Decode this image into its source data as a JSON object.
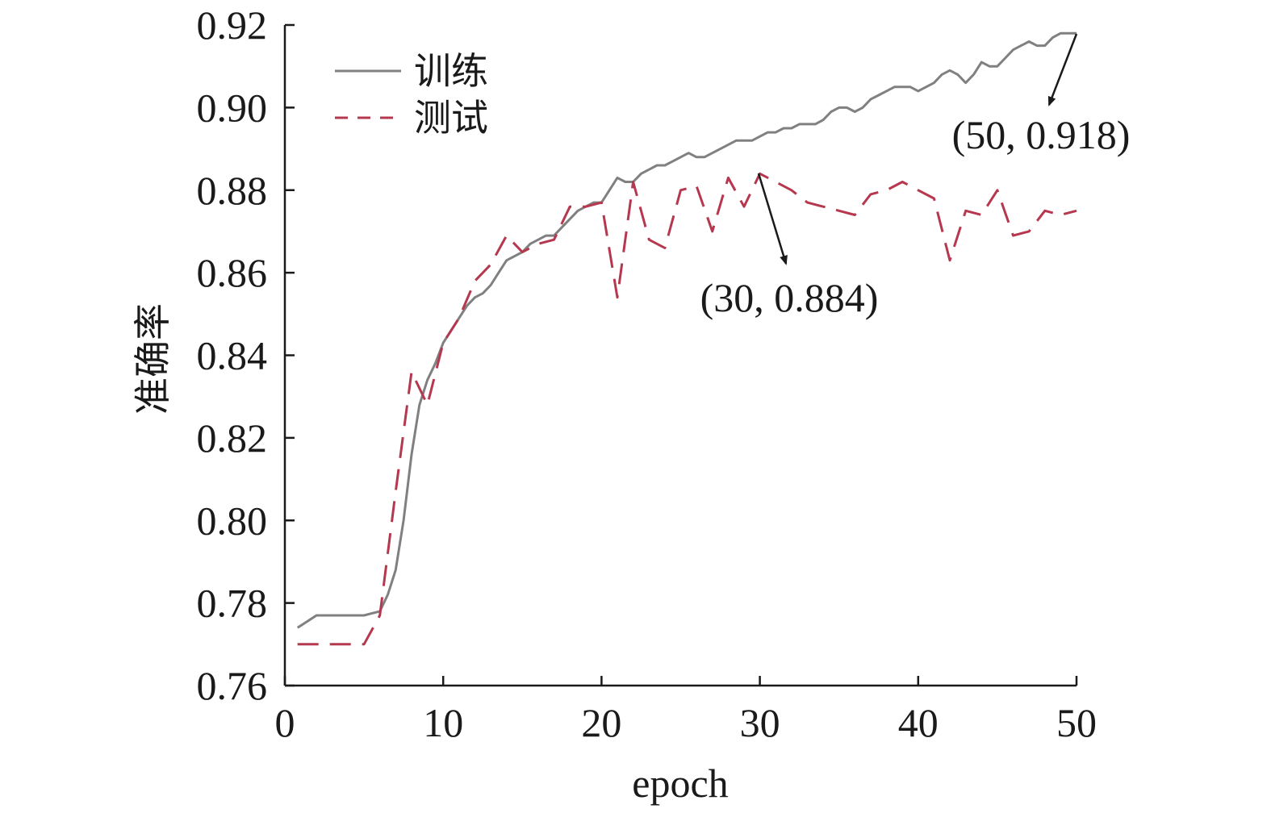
{
  "chart_data": {
    "type": "line",
    "xlabel": "epoch",
    "ylabel": "准确率",
    "xlim": [
      0,
      50
    ],
    "ylim": [
      0.76,
      0.92
    ],
    "xticks": [
      "0",
      "10",
      "20",
      "30",
      "40",
      "50"
    ],
    "yticks": [
      "0.76",
      "0.78",
      "0.80",
      "0.82",
      "0.84",
      "0.86",
      "0.88",
      "0.90",
      "0.92"
    ],
    "grid": false,
    "legend_position": "top-left",
    "series": [
      {
        "name": "训练",
        "color": "#808080",
        "style": "solid",
        "points": [
          [
            0.8,
            0.774
          ],
          [
            1.2,
            0.775
          ],
          [
            2,
            0.777
          ],
          [
            3,
            0.777
          ],
          [
            4,
            0.777
          ],
          [
            5,
            0.777
          ],
          [
            5.5,
            0.7775
          ],
          [
            6,
            0.778
          ],
          [
            6.5,
            0.782
          ],
          [
            7,
            0.788
          ],
          [
            7.5,
            0.8
          ],
          [
            8,
            0.816
          ],
          [
            8.5,
            0.828
          ],
          [
            9,
            0.834
          ],
          [
            9.5,
            0.838
          ],
          [
            10,
            0.843
          ],
          [
            10.5,
            0.846
          ],
          [
            11,
            0.849
          ],
          [
            11.5,
            0.852
          ],
          [
            12,
            0.854
          ],
          [
            12.5,
            0.855
          ],
          [
            13,
            0.857
          ],
          [
            13.5,
            0.86
          ],
          [
            14,
            0.863
          ],
          [
            14.5,
            0.864
          ],
          [
            15,
            0.865
          ],
          [
            15.5,
            0.867
          ],
          [
            16,
            0.868
          ],
          [
            16.5,
            0.869
          ],
          [
            17,
            0.869
          ],
          [
            17.5,
            0.871
          ],
          [
            18,
            0.873
          ],
          [
            18.5,
            0.875
          ],
          [
            19,
            0.876
          ],
          [
            19.5,
            0.877
          ],
          [
            20,
            0.877
          ],
          [
            20.5,
            0.88
          ],
          [
            21,
            0.883
          ],
          [
            21.5,
            0.882
          ],
          [
            22,
            0.882
          ],
          [
            22.5,
            0.884
          ],
          [
            23,
            0.885
          ],
          [
            23.5,
            0.886
          ],
          [
            24,
            0.886
          ],
          [
            24.5,
            0.887
          ],
          [
            25,
            0.888
          ],
          [
            25.5,
            0.889
          ],
          [
            26,
            0.888
          ],
          [
            26.5,
            0.888
          ],
          [
            27,
            0.889
          ],
          [
            27.5,
            0.89
          ],
          [
            28,
            0.891
          ],
          [
            28.5,
            0.892
          ],
          [
            29,
            0.892
          ],
          [
            29.5,
            0.892
          ],
          [
            30,
            0.893
          ],
          [
            30.5,
            0.894
          ],
          [
            31,
            0.894
          ],
          [
            31.5,
            0.895
          ],
          [
            32,
            0.895
          ],
          [
            32.5,
            0.896
          ],
          [
            33,
            0.896
          ],
          [
            33.5,
            0.896
          ],
          [
            34,
            0.897
          ],
          [
            34.5,
            0.899
          ],
          [
            35,
            0.9
          ],
          [
            35.5,
            0.9
          ],
          [
            36,
            0.899
          ],
          [
            36.5,
            0.9
          ],
          [
            37,
            0.902
          ],
          [
            37.5,
            0.903
          ],
          [
            38,
            0.904
          ],
          [
            38.5,
            0.905
          ],
          [
            39,
            0.905
          ],
          [
            39.5,
            0.905
          ],
          [
            40,
            0.904
          ],
          [
            40.5,
            0.905
          ],
          [
            41,
            0.906
          ],
          [
            41.5,
            0.908
          ],
          [
            42,
            0.909
          ],
          [
            42.5,
            0.908
          ],
          [
            43,
            0.906
          ],
          [
            43.5,
            0.908
          ],
          [
            44,
            0.911
          ],
          [
            44.5,
            0.91
          ],
          [
            45,
            0.91
          ],
          [
            45.5,
            0.912
          ],
          [
            46,
            0.914
          ],
          [
            46.5,
            0.915
          ],
          [
            47,
            0.916
          ],
          [
            47.5,
            0.915
          ],
          [
            48,
            0.915
          ],
          [
            48.5,
            0.917
          ],
          [
            49,
            0.918
          ],
          [
            49.5,
            0.918
          ],
          [
            50,
            0.918
          ]
        ]
      },
      {
        "name": "测试",
        "color": "#b5384f",
        "style": "dashed",
        "points": [
          [
            0.8,
            0.77
          ],
          [
            1,
            0.77
          ],
          [
            2,
            0.77
          ],
          [
            3,
            0.77
          ],
          [
            4,
            0.77
          ],
          [
            5,
            0.77
          ],
          [
            6,
            0.777
          ],
          [
            7,
            0.807
          ],
          [
            8,
            0.836
          ],
          [
            9,
            0.828
          ],
          [
            10,
            0.843
          ],
          [
            11,
            0.849
          ],
          [
            12,
            0.858
          ],
          [
            13,
            0.862
          ],
          [
            14,
            0.869
          ],
          [
            15,
            0.865
          ],
          [
            16,
            0.867
          ],
          [
            17,
            0.868
          ],
          [
            18,
            0.876
          ],
          [
            19,
            0.876
          ],
          [
            20,
            0.877
          ],
          [
            21,
            0.854
          ],
          [
            22,
            0.882
          ],
          [
            23,
            0.868
          ],
          [
            24,
            0.866
          ],
          [
            25,
            0.88
          ],
          [
            26,
            0.881
          ],
          [
            27,
            0.87
          ],
          [
            28,
            0.883
          ],
          [
            29,
            0.876
          ],
          [
            30,
            0.884
          ],
          [
            31,
            0.882
          ],
          [
            32,
            0.88
          ],
          [
            33,
            0.877
          ],
          [
            34,
            0.876
          ],
          [
            35,
            0.875
          ],
          [
            36,
            0.874
          ],
          [
            37,
            0.879
          ],
          [
            38,
            0.88
          ],
          [
            39,
            0.882
          ],
          [
            40,
            0.88
          ],
          [
            41,
            0.878
          ],
          [
            42,
            0.863
          ],
          [
            43,
            0.875
          ],
          [
            44,
            0.874
          ],
          [
            45,
            0.88
          ],
          [
            46,
            0.869
          ],
          [
            47,
            0.87
          ],
          [
            48,
            0.875
          ],
          [
            49,
            0.874
          ],
          [
            50,
            0.875
          ]
        ]
      }
    ],
    "annotations": [
      {
        "text": "(50, 0.918)",
        "x": 50,
        "y": 0.918
      },
      {
        "text": "(30, 0.884)",
        "x": 30,
        "y": 0.884
      }
    ]
  }
}
